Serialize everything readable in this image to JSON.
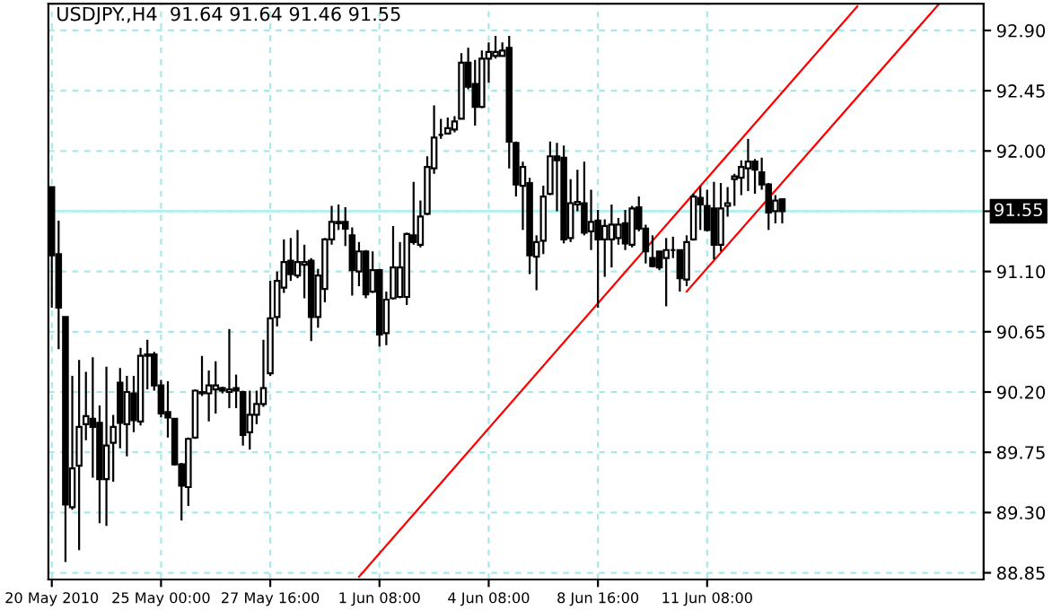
{
  "chart_data": {
    "type": "candlestick",
    "title": "USDJPY.,H4  91.64 91.64 91.46 91.55",
    "categories": [
      "20 May 2010",
      null,
      null,
      null,
      null,
      null,
      null,
      null,
      null,
      null,
      null,
      null,
      null,
      null,
      null,
      null,
      "25 May 00:00",
      null,
      null,
      null,
      null,
      null,
      null,
      null,
      null,
      null,
      null,
      null,
      null,
      null,
      null,
      null,
      "27 May 16:00",
      null,
      null,
      null,
      null,
      null,
      null,
      null,
      null,
      null,
      null,
      null,
      null,
      null,
      null,
      null,
      "1 Jun 08:00",
      null,
      null,
      null,
      null,
      null,
      null,
      null,
      null,
      null,
      null,
      null,
      null,
      null,
      null,
      null,
      "4 Jun 08:00",
      null,
      null,
      null,
      null,
      null,
      null,
      null,
      null,
      null,
      null,
      null,
      null,
      null,
      null,
      null,
      "8 Jun 16:00",
      null,
      null,
      null,
      null,
      null,
      null,
      null,
      null,
      null,
      null,
      null,
      null,
      null,
      null,
      null,
      "11 Jun 08:00",
      null,
      null,
      null,
      null,
      null,
      null,
      null,
      null,
      null,
      null,
      null,
      null,
      null,
      null,
      null,
      null,
      null,
      null,
      null,
      null,
      null,
      null,
      null,
      null,
      null,
      null,
      null,
      null,
      null,
      null,
      null,
      null,
      null,
      null,
      null,
      null,
      null,
      null,
      null,
      null
    ],
    "color": "#000000",
    "ohlc": [
      [
        91.73,
        91.73,
        90.83,
        91.22
      ],
      [
        91.23,
        91.48,
        90.52,
        90.83
      ],
      [
        90.76,
        90.76,
        88.93,
        89.36
      ],
      [
        89.34,
        90.32,
        89.32,
        89.63
      ],
      [
        89.65,
        90.44,
        89.02,
        89.94
      ],
      [
        89.96,
        90.35,
        89.84,
        90.02
      ],
      [
        90.0,
        90.46,
        89.56,
        89.94
      ],
      [
        89.97,
        90.1,
        89.22,
        89.55
      ],
      [
        89.55,
        90.39,
        89.2,
        89.8
      ],
      [
        89.82,
        90.03,
        89.53,
        89.94
      ],
      [
        90.27,
        90.38,
        89.78,
        89.97
      ],
      [
        89.96,
        90.32,
        89.72,
        90.2
      ],
      [
        90.19,
        90.32,
        89.9,
        89.99
      ],
      [
        89.98,
        90.53,
        89.95,
        90.47
      ],
      [
        90.47,
        90.59,
        90.22,
        90.48
      ],
      [
        90.48,
        90.5,
        90.21,
        90.25
      ],
      [
        90.25,
        90.29,
        90.01,
        90.04
      ],
      [
        90.05,
        90.28,
        89.86,
        90.01
      ],
      [
        90.0,
        90.0,
        89.65,
        89.66
      ],
      [
        89.66,
        89.67,
        89.24,
        89.5
      ],
      [
        89.49,
        89.86,
        89.35,
        89.85
      ],
      [
        89.86,
        90.22,
        89.85,
        90.21
      ],
      [
        90.2,
        90.47,
        90.17,
        90.19
      ],
      [
        90.19,
        90.36,
        89.98,
        90.25
      ],
      [
        90.22,
        90.43,
        90.04,
        90.25
      ],
      [
        90.23,
        90.24,
        90.19,
        90.21
      ],
      [
        90.2,
        90.67,
        90.08,
        90.22
      ],
      [
        90.23,
        90.33,
        90.08,
        90.21
      ],
      [
        90.2,
        90.21,
        89.8,
        89.88
      ],
      [
        89.9,
        90.21,
        89.77,
        90.03
      ],
      [
        90.03,
        90.21,
        89.96,
        90.11
      ],
      [
        90.11,
        90.59,
        90.09,
        90.23
      ],
      [
        90.34,
        91.03,
        90.32,
        90.75
      ],
      [
        90.76,
        91.1,
        90.69,
        91.03
      ],
      [
        90.98,
        91.34,
        90.94,
        91.17
      ],
      [
        91.18,
        91.35,
        91.03,
        91.08
      ],
      [
        91.07,
        91.41,
        91.05,
        91.17
      ],
      [
        91.15,
        91.3,
        90.9,
        91.17
      ],
      [
        91.18,
        91.2,
        90.58,
        90.76
      ],
      [
        90.76,
        91.12,
        90.68,
        91.07
      ],
      [
        90.97,
        91.35,
        90.87,
        91.34
      ],
      [
        91.34,
        91.59,
        91.3,
        91.47
      ],
      [
        91.46,
        91.6,
        91.41,
        91.47
      ],
      [
        91.47,
        91.58,
        91.29,
        91.42
      ],
      [
        91.37,
        91.43,
        90.92,
        91.11
      ],
      [
        91.1,
        91.32,
        90.99,
        91.25
      ],
      [
        91.25,
        91.26,
        90.9,
        90.93
      ],
      [
        90.95,
        91.25,
        90.94,
        91.11
      ],
      [
        91.11,
        91.12,
        90.54,
        90.63
      ],
      [
        90.64,
        90.95,
        90.55,
        90.89
      ],
      [
        90.9,
        91.44,
        90.89,
        91.13
      ],
      [
        90.91,
        91.32,
        90.9,
        91.13
      ],
      [
        90.91,
        91.39,
        90.85,
        91.38
      ],
      [
        91.37,
        91.77,
        91.3,
        91.32
      ],
      [
        91.3,
        91.63,
        91.28,
        91.51
      ],
      [
        91.53,
        91.96,
        91.52,
        91.88
      ],
      [
        91.87,
        92.34,
        91.83,
        92.1
      ],
      [
        92.12,
        92.24,
        92.09,
        92.12
      ],
      [
        92.13,
        92.25,
        92.13,
        92.17
      ],
      [
        92.16,
        92.26,
        92.14,
        92.22
      ],
      [
        92.24,
        92.73,
        92.24,
        92.66
      ],
      [
        92.66,
        92.77,
        92.46,
        92.48
      ],
      [
        92.5,
        92.68,
        92.19,
        92.33
      ],
      [
        92.33,
        92.75,
        92.32,
        92.69
      ],
      [
        92.69,
        92.81,
        92.51,
        92.74
      ],
      [
        92.71,
        92.86,
        92.69,
        92.74
      ],
      [
        92.71,
        92.81,
        92.71,
        92.75
      ],
      [
        92.77,
        92.86,
        91.87,
        92.07
      ],
      [
        92.06,
        92.07,
        91.66,
        91.75
      ],
      [
        91.74,
        91.92,
        91.41,
        91.88
      ],
      [
        91.76,
        91.8,
        91.08,
        91.22
      ],
      [
        91.21,
        91.37,
        90.96,
        91.32
      ],
      [
        91.33,
        91.74,
        91.23,
        91.66
      ],
      [
        91.68,
        92.07,
        91.67,
        91.96
      ],
      [
        91.96,
        92.06,
        91.55,
        91.93
      ],
      [
        91.95,
        92.04,
        91.31,
        91.34
      ],
      [
        91.35,
        91.79,
        91.32,
        91.61
      ],
      [
        91.6,
        91.86,
        91.55,
        91.62
      ],
      [
        91.61,
        91.92,
        91.37,
        91.39
      ],
      [
        91.4,
        91.71,
        91.26,
        91.47
      ],
      [
        91.48,
        91.56,
        90.83,
        91.34
      ],
      [
        91.34,
        91.49,
        91.06,
        91.44
      ],
      [
        91.34,
        91.6,
        91.13,
        91.45
      ],
      [
        91.35,
        91.5,
        91.3,
        91.45
      ],
      [
        91.46,
        91.56,
        91.26,
        91.31
      ],
      [
        91.3,
        91.59,
        91.28,
        91.57
      ],
      [
        91.58,
        91.66,
        91.4,
        91.42
      ],
      [
        91.42,
        91.45,
        91.16,
        91.25
      ],
      [
        91.2,
        91.37,
        91.13,
        91.14
      ],
      [
        91.25,
        91.25,
        91.11,
        91.13
      ],
      [
        91.2,
        91.35,
        90.84,
        91.26
      ],
      [
        91.26,
        91.36,
        91.2,
        91.26
      ],
      [
        91.26,
        91.26,
        90.95,
        91.05
      ],
      [
        91.04,
        91.37,
        90.99,
        91.32
      ],
      [
        91.34,
        91.68,
        91.33,
        91.66
      ],
      [
        91.65,
        91.74,
        91.41,
        91.6
      ],
      [
        91.59,
        91.71,
        91.4,
        91.41
      ],
      [
        91.57,
        91.77,
        91.19,
        91.3
      ],
      [
        91.3,
        91.76,
        91.25,
        91.57
      ],
      [
        91.59,
        91.73,
        91.51,
        91.61
      ],
      [
        91.79,
        91.83,
        91.59,
        91.81
      ],
      [
        91.8,
        91.93,
        91.67,
        91.88
      ],
      [
        91.87,
        92.09,
        91.7,
        91.92
      ],
      [
        91.92,
        91.94,
        91.68,
        91.86
      ],
      [
        91.84,
        91.95,
        91.71,
        91.75
      ],
      [
        91.75,
        91.76,
        91.41,
        91.54
      ],
      [
        91.55,
        91.67,
        91.46,
        91.63
      ],
      [
        91.64,
        91.64,
        91.46,
        91.55
      ],
      null,
      null,
      null,
      null,
      null,
      null,
      null,
      null,
      null,
      null,
      null,
      null,
      null,
      null,
      null,
      null,
      null,
      null,
      null,
      null,
      null,
      null,
      null,
      null,
      null,
      null,
      null,
      null,
      null
    ],
    "series": [
      {
        "type": "line",
        "color": "#ff0000",
        "values": [
          null,
          null,
          null,
          null,
          null,
          null,
          null,
          null,
          null,
          null,
          null,
          null,
          null,
          null,
          null,
          null,
          null,
          null,
          null,
          null,
          null,
          null,
          null,
          null,
          null,
          null,
          null,
          null,
          null,
          null,
          null,
          null,
          null,
          null,
          null,
          null,
          null,
          null,
          null,
          null,
          null,
          null,
          null,
          null,
          null,
          88.82,
          null,
          null,
          null,
          null,
          null,
          null,
          null,
          null,
          null,
          null,
          null,
          null,
          null,
          null,
          null,
          null,
          null,
          null,
          null,
          null,
          null,
          null,
          null,
          null,
          null,
          null,
          null,
          null,
          null,
          null,
          null,
          null,
          null,
          null,
          null,
          null,
          null,
          null,
          null,
          null,
          null,
          null,
          null,
          null,
          null,
          null,
          null,
          null,
          null,
          null,
          null,
          null,
          null,
          null,
          null,
          null,
          null,
          null,
          null,
          null,
          null,
          null,
          null,
          null,
          null,
          null,
          null,
          null,
          null,
          null,
          null,
          null,
          93.08,
          null,
          null,
          null,
          null,
          null,
          null,
          null,
          null,
          null,
          null,
          null,
          null,
          null,
          null,
          null,
          null,
          null,
          null
        ]
      },
      {
        "type": "line",
        "color": "#ff0000",
        "values": [
          null,
          null,
          null,
          null,
          null,
          null,
          null,
          null,
          null,
          null,
          null,
          null,
          null,
          null,
          null,
          null,
          null,
          null,
          null,
          null,
          null,
          null,
          null,
          null,
          null,
          null,
          null,
          null,
          null,
          null,
          null,
          null,
          null,
          null,
          null,
          null,
          null,
          null,
          null,
          null,
          null,
          null,
          null,
          null,
          null,
          null,
          null,
          null,
          null,
          null,
          null,
          null,
          null,
          null,
          null,
          null,
          null,
          null,
          null,
          null,
          null,
          null,
          null,
          null,
          null,
          null,
          null,
          null,
          null,
          null,
          null,
          null,
          null,
          null,
          null,
          null,
          null,
          null,
          null,
          null,
          null,
          null,
          null,
          null,
          null,
          null,
          null,
          null,
          null,
          null,
          null,
          null,
          null,
          90.95,
          null,
          null,
          null,
          null,
          null,
          null,
          null,
          null,
          null,
          null,
          null,
          null,
          null,
          null,
          null,
          null,
          null,
          null,
          null,
          null,
          null,
          null,
          null,
          null,
          null,
          null,
          null,
          null,
          null,
          null,
          null,
          null,
          null,
          null,
          null,
          null,
          93.1,
          null,
          null,
          null,
          null,
          null,
          null
        ]
      }
    ],
    "ylim": [
      88.8,
      93.1
    ],
    "yticks": [
      88.85,
      {
        "value": 89.3,
        "label": "89.30"
      },
      89.75,
      {
        "value": 90.2,
        "label": "90.20"
      },
      90.65,
      {
        "value": 91.1,
        "label": "91.10"
      },
      {
        "value": 91.55,
        "label": null
      },
      {
        "value": 92,
        "label": "92.00"
      },
      92.45,
      {
        "value": 92.9,
        "label": "92.90"
      }
    ],
    "ref_lines": [
      {
        "axis": "y",
        "value": 91.55,
        "label": "91.55",
        "color": "#b0f0f0"
      }
    ],
    "grid": true,
    "legend": false
  }
}
